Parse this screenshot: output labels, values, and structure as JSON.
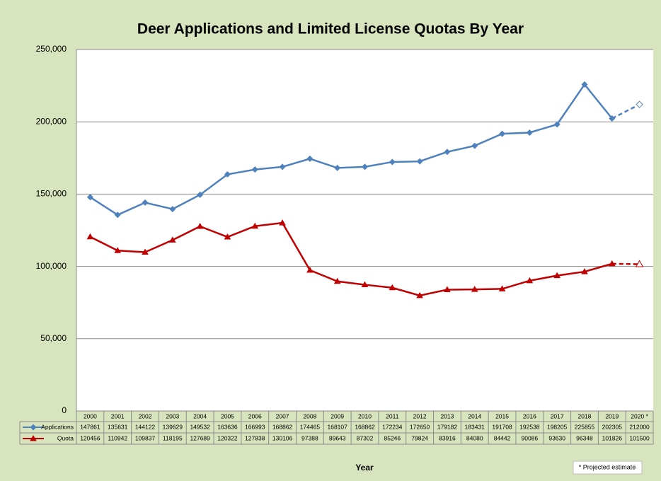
{
  "chart_data": {
    "type": "line",
    "title": "Deer Applications and Limited License Quotas By Year",
    "x_label": "Year",
    "annotation": "* Projected estimate",
    "categories": [
      "2000",
      "2001",
      "2002",
      "2003",
      "2004",
      "2005",
      "2006",
      "2007",
      "2008",
      "2009",
      "2010",
      "2011",
      "2012",
      "2013",
      "2014",
      "2015",
      "2016",
      "2017",
      "2018",
      "2019",
      "2020 *"
    ],
    "series": [
      {
        "name": "Applications",
        "color": "#4f81bd",
        "values": [
          147861,
          135631,
          144122,
          139629,
          149532,
          163636,
          166993,
          168862,
          174465,
          168107,
          168862,
          172234,
          172650,
          179182,
          183431,
          191708,
          192538,
          198205,
          225855,
          202305,
          212000
        ]
      },
      {
        "name": "Quota",
        "color": "#c00000",
        "values": [
          120456,
          110942,
          109837,
          118195,
          127689,
          120322,
          127838,
          130106,
          97388,
          89643,
          87302,
          85246,
          79824,
          83916,
          84080,
          84442,
          90086,
          93630,
          96348,
          101826,
          101500
        ]
      }
    ],
    "ylim": [
      0,
      250000
    ],
    "yticks": [
      0,
      {
        "value": 50000,
        "label": "50,000"
      },
      {
        "value": 100000,
        "label": "100,000"
      },
      {
        "value": 150000,
        "label": "150,000"
      },
      {
        "value": 200000,
        "label": "200,000"
      },
      {
        "value": 250000,
        "label": "250,000"
      }
    ],
    "grid": true
  }
}
